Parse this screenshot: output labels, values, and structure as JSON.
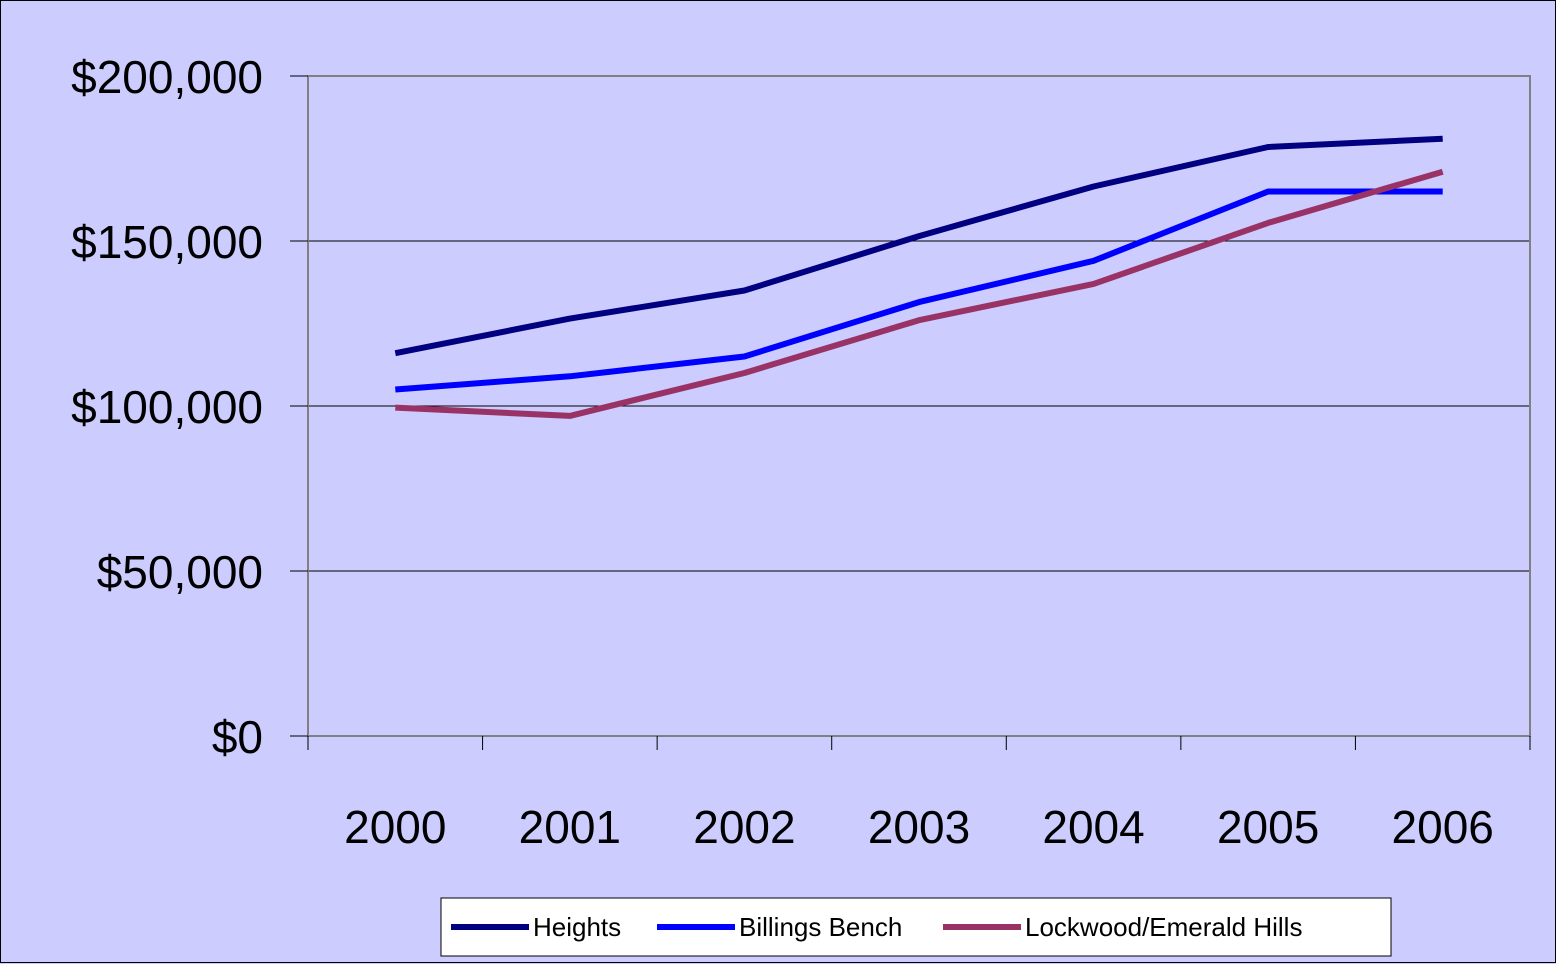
{
  "chart_data": {
    "type": "line",
    "title": "",
    "xlabel": "",
    "ylabel": "",
    "categories": [
      "2000",
      "2001",
      "2002",
      "2003",
      "2004",
      "2005",
      "2006"
    ],
    "ylim": [
      0,
      200000
    ],
    "yticks": [
      0,
      50000,
      100000,
      150000,
      200000
    ],
    "ytick_labels": [
      "$0",
      "$50,000",
      "$100,000",
      "$150,000",
      "$200,000"
    ],
    "grid": true,
    "legend_position": "bottom",
    "series": [
      {
        "name": "Heights",
        "color": "#000080",
        "values": [
          116000,
          126500,
          135000,
          151500,
          166500,
          178500,
          181000
        ]
      },
      {
        "name": "Billings Bench",
        "color": "#0000ff",
        "values": [
          105000,
          109000,
          115000,
          131500,
          144000,
          165000,
          165000
        ]
      },
      {
        "name": "Lockwood/Emerald Hills",
        "color": "#993366",
        "values": [
          99500,
          97000,
          110000,
          126000,
          137000,
          155500,
          171000
        ]
      }
    ]
  }
}
